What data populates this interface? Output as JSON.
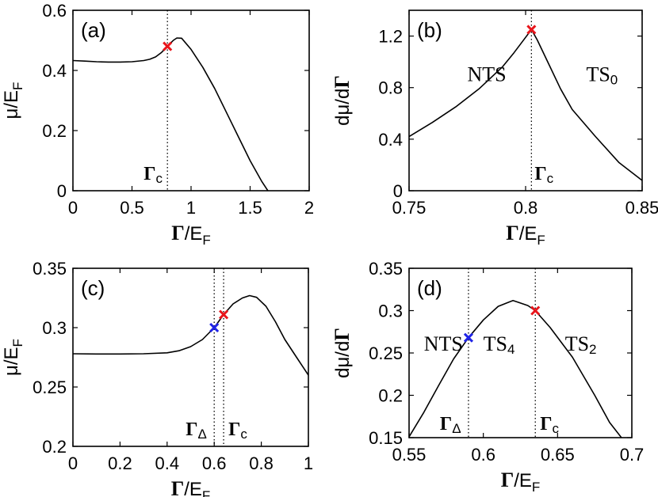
{
  "chart_data": [
    {
      "panel": "(a)",
      "type": "line",
      "xlabel": {
        "main": "Γ",
        "rest": "/E",
        "sub": "F"
      },
      "ylabel": {
        "main": "μ",
        "rest": "/E",
        "sub": "F"
      },
      "xlim": [
        0,
        2
      ],
      "ylim": [
        0,
        0.6
      ],
      "xticks": [
        0,
        0.5,
        1,
        1.5,
        2
      ],
      "xtick_labels": [
        "0",
        "0.5",
        "1",
        "1.5",
        "2"
      ],
      "yticks": [
        0,
        0.2,
        0.4,
        0.6
      ],
      "ytick_labels": [
        "0",
        "0.2",
        "0.4",
        "0.6"
      ],
      "series": [
        {
          "name": "mu",
          "points": [
            [
              0,
              0.433
            ],
            [
              0.1,
              0.431
            ],
            [
              0.2,
              0.429
            ],
            [
              0.3,
              0.428
            ],
            [
              0.4,
              0.428
            ],
            [
              0.5,
              0.429
            ],
            [
              0.6,
              0.433
            ],
            [
              0.65,
              0.437
            ],
            [
              0.7,
              0.445
            ],
            [
              0.75,
              0.46
            ],
            [
              0.8,
              0.48
            ],
            [
              0.85,
              0.5
            ],
            [
              0.88,
              0.508
            ],
            [
              0.92,
              0.507
            ],
            [
              1.0,
              0.47
            ],
            [
              1.1,
              0.41
            ],
            [
              1.2,
              0.34
            ],
            [
              1.3,
              0.26
            ],
            [
              1.4,
              0.18
            ],
            [
              1.5,
              0.1
            ],
            [
              1.6,
              0.03
            ],
            [
              1.65,
              0.0
            ]
          ]
        }
      ],
      "vlines": [
        {
          "x": 0.8,
          "label_main": "Γ",
          "label_sub": "c"
        }
      ],
      "markers": [
        {
          "x": 0.8,
          "y": 0.48,
          "color": "#e8151b"
        }
      ]
    },
    {
      "panel": "(b)",
      "type": "line",
      "xlabel": {
        "main": "Γ",
        "rest": "/E",
        "sub": "F"
      },
      "ylabel": {
        "main": "dμ/dΓ",
        "rest": "",
        "sub": ""
      },
      "xlim": [
        0.75,
        0.85
      ],
      "ylim": [
        0,
        1.4
      ],
      "xticks": [
        0.75,
        0.8,
        0.85
      ],
      "xtick_labels": [
        "0.75",
        "0.8",
        "0.85"
      ],
      "yticks": [
        0,
        0.4,
        0.8,
        1.2
      ],
      "ytick_labels": [
        "0",
        "0.4",
        "0.8",
        "1.2"
      ],
      "series": [
        {
          "name": "dmu",
          "points": [
            [
              0.75,
              0.42
            ],
            [
              0.76,
              0.53
            ],
            [
              0.77,
              0.65
            ],
            [
              0.78,
              0.79
            ],
            [
              0.79,
              0.96
            ],
            [
              0.795,
              1.07
            ],
            [
              0.8,
              1.19
            ],
            [
              0.8025,
              1.25
            ],
            [
              0.805,
              1.17
            ],
            [
              0.81,
              0.98
            ],
            [
              0.815,
              0.79
            ],
            [
              0.82,
              0.63
            ],
            [
              0.83,
              0.42
            ],
            [
              0.84,
              0.22
            ],
            [
              0.85,
              0.08
            ]
          ]
        }
      ],
      "vlines": [
        {
          "x": 0.8025,
          "label_main": "Γ",
          "label_sub": "c"
        }
      ],
      "markers": [
        {
          "x": 0.8025,
          "y": 1.25,
          "color": "#e8151b"
        }
      ],
      "regions": [
        {
          "main": "NTS",
          "sub": "",
          "x": 0.775,
          "y": 0.85
        },
        {
          "main": "TS",
          "sub": "0",
          "x": 0.826,
          "y": 0.85
        }
      ]
    },
    {
      "panel": "(c)",
      "type": "line",
      "xlabel": {
        "main": "Γ",
        "rest": "/E",
        "sub": "F"
      },
      "ylabel": {
        "main": "μ",
        "rest": "/E",
        "sub": "F"
      },
      "xlim": [
        0,
        1
      ],
      "ylim": [
        0.2,
        0.35
      ],
      "xticks": [
        0,
        0.2,
        0.4,
        0.6,
        0.8,
        1
      ],
      "xtick_labels": [
        "0",
        "0.2",
        "0.4",
        "0.6",
        "0.8",
        "1"
      ],
      "yticks": [
        0.2,
        0.25,
        0.3,
        0.35
      ],
      "ytick_labels": [
        "0.2",
        "0.25",
        "0.3",
        "0.35"
      ],
      "series": [
        {
          "name": "mu",
          "points": [
            [
              0,
              0.278
            ],
            [
              0.1,
              0.2778
            ],
            [
              0.2,
              0.2778
            ],
            [
              0.3,
              0.278
            ],
            [
              0.4,
              0.2788
            ],
            [
              0.45,
              0.2805
            ],
            [
              0.5,
              0.284
            ],
            [
              0.55,
              0.29
            ],
            [
              0.6,
              0.3
            ],
            [
              0.64,
              0.311
            ],
            [
              0.68,
              0.32
            ],
            [
              0.72,
              0.325
            ],
            [
              0.75,
              0.327
            ],
            [
              0.78,
              0.3255
            ],
            [
              0.82,
              0.318
            ],
            [
              0.86,
              0.305
            ],
            [
              0.9,
              0.29
            ],
            [
              0.95,
              0.275
            ],
            [
              1.0,
              0.26
            ]
          ]
        }
      ],
      "vlines": [
        {
          "x": 0.6,
          "label_main": "Γ",
          "label_sub": "Δ"
        },
        {
          "x": 0.64,
          "label_main": "Γ",
          "label_sub": "c"
        }
      ],
      "markers": [
        {
          "x": 0.6,
          "y": 0.3,
          "color": "#1f23e6"
        },
        {
          "x": 0.64,
          "y": 0.311,
          "color": "#e8151b"
        }
      ]
    },
    {
      "panel": "(d)",
      "type": "line",
      "xlabel": {
        "main": "Γ",
        "rest": "/E",
        "sub": "F"
      },
      "ylabel": {
        "main": "dμ/dΓ",
        "rest": "",
        "sub": ""
      },
      "xlim": [
        0.55,
        0.7
      ],
      "ylim": [
        0.15,
        0.35
      ],
      "xticks": [
        0.55,
        0.6,
        0.65,
        0.7
      ],
      "xtick_labels": [
        "0.55",
        "0.6",
        "0.65",
        "0.7"
      ],
      "yticks": [
        0.15,
        0.2,
        0.25,
        0.3,
        0.35
      ],
      "ytick_labels": [
        "0.15",
        "0.2",
        "0.25",
        "0.3",
        "0.35"
      ],
      "series": [
        {
          "name": "dmu",
          "points": [
            [
              0.55,
              0.151
            ],
            [
              0.56,
              0.18
            ],
            [
              0.57,
              0.212
            ],
            [
              0.58,
              0.243
            ],
            [
              0.59,
              0.268
            ],
            [
              0.6,
              0.289
            ],
            [
              0.61,
              0.305
            ],
            [
              0.62,
              0.312
            ],
            [
              0.63,
              0.306
            ],
            [
              0.635,
              0.3
            ],
            [
              0.645,
              0.28
            ],
            [
              0.66,
              0.245
            ],
            [
              0.675,
              0.2
            ],
            [
              0.685,
              0.168
            ],
            [
              0.693,
              0.15
            ]
          ]
        }
      ],
      "vlines": [
        {
          "x": 0.59,
          "label_main": "Γ",
          "label_sub": "Δ"
        },
        {
          "x": 0.635,
          "label_main": "Γ",
          "label_sub": "c"
        }
      ],
      "markers": [
        {
          "x": 0.59,
          "y": 0.268,
          "color": "#1f23e6"
        },
        {
          "x": 0.635,
          "y": 0.3,
          "color": "#e8151b"
        }
      ],
      "regions": [
        {
          "main": "NTS",
          "sub": "",
          "x": 0.56,
          "y": 0.253
        },
        {
          "main": "TS",
          "sub": "4",
          "x": 0.6,
          "y": 0.253
        },
        {
          "main": "TS",
          "sub": "2",
          "x": 0.655,
          "y": 0.253
        }
      ]
    }
  ]
}
